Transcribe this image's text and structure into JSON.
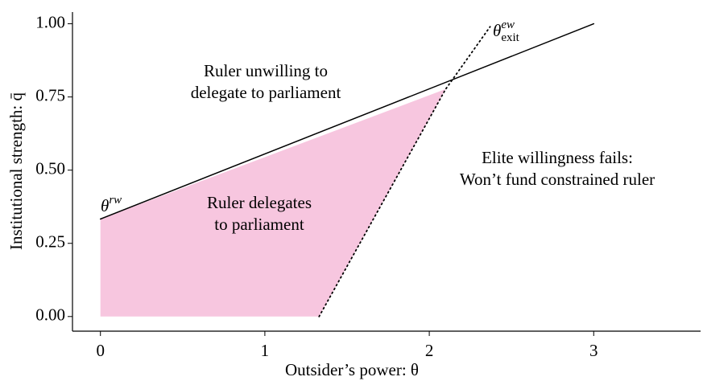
{
  "chart_data": {
    "type": "line",
    "xlabel": "Outsider’s power: θ",
    "ylabel": "Institutional strength: q̄",
    "xlim": [
      -0.17,
      3.65
    ],
    "ylim": [
      -0.05,
      1.04
    ],
    "xticks": [
      0,
      1,
      2,
      3
    ],
    "yticks": [
      {
        "value": 0,
        "label": "0.00"
      },
      {
        "value": 0.25,
        "label": "0.25"
      },
      {
        "value": 0.5,
        "label": "0.50"
      },
      {
        "value": 0.75,
        "label": "0.75"
      },
      {
        "value": 1,
        "label": "1.00"
      }
    ],
    "grid": false,
    "region": {
      "x": [
        0,
        0,
        2.1,
        1.33
      ],
      "values": [
        0,
        0.333,
        0.777,
        0
      ],
      "color": "#f7c6df"
    },
    "series": [
      {
        "x": [
          0,
          3
        ],
        "values": [
          0.333,
          1.0
        ],
        "color": "#000000",
        "style": "solid"
      },
      {
        "x": [
          1.33,
          2.1,
          2.37
        ],
        "values": [
          0,
          0.777,
          0.99
        ],
        "color": "#000000",
        "style": "dotted"
      }
    ],
    "annotations": [
      {
        "lines": [
          "Ruler unwilling to",
          "delegate to parliament"
        ]
      },
      {
        "lines": [
          "Ruler delegates",
          "to parliament"
        ]
      },
      {
        "lines": [
          "Elite willingness fails:",
          "Won’t fund constrained ruler"
        ]
      }
    ],
    "curve_labels": [
      {
        "base": "θ",
        "sup": "rw"
      },
      {
        "base": "θ",
        "sup": "ew",
        "sub": "exit"
      }
    ]
  }
}
